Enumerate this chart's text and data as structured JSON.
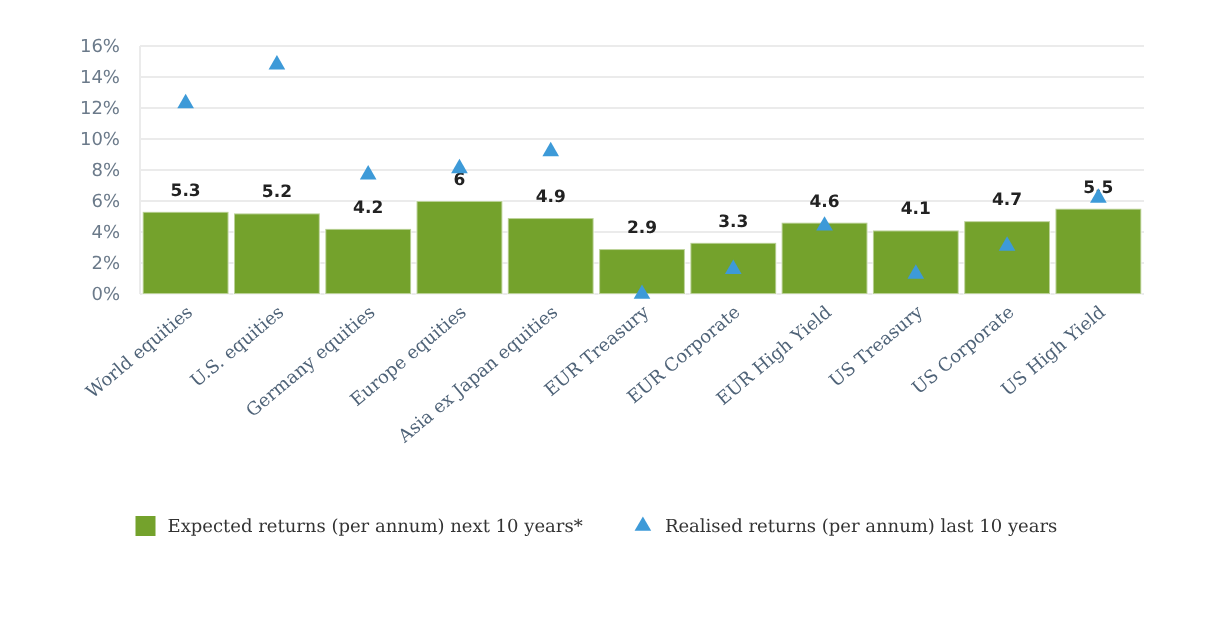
{
  "chart_data": {
    "type": "bar",
    "categories": [
      "World equities",
      "U.S. equities",
      "Germany equities",
      "Europe equities",
      "Asia ex Japan equities",
      "EUR Treasury",
      "EUR Corporate",
      "EUR High Yield",
      "US Treasury",
      "US Corporate",
      "US High Yield"
    ],
    "series": [
      {
        "name": "Expected returns (per annum) next 10 years*",
        "color": "#74a22c",
        "values": [
          5.3,
          5.2,
          4.2,
          6,
          4.9,
          2.9,
          3.3,
          4.6,
          4.1,
          4.7,
          5.5
        ],
        "value_labels": [
          "5.3",
          "5.2",
          "4.2",
          "6",
          "4.9",
          "2.9",
          "3.3",
          "4.6",
          "4.1",
          "4.7",
          "5.5"
        ]
      },
      {
        "name": "Realised returns (per annum) last 10 years",
        "type": "scatter",
        "marker": "triangle",
        "color": "#3d9ad8",
        "values": [
          12.3,
          14.8,
          7.7,
          8.1,
          9.2,
          0.0,
          1.6,
          4.4,
          1.3,
          3.1,
          6.2
        ]
      }
    ],
    "ylim": [
      0,
      16
    ],
    "yticks": [
      {
        "value": 0,
        "label": "0%"
      },
      {
        "value": 2,
        "label": "2%"
      },
      {
        "value": 4,
        "label": "4%"
      },
      {
        "value": 6,
        "label": "6%"
      },
      {
        "value": 8,
        "label": "8%"
      },
      {
        "value": 10,
        "label": "10%"
      },
      {
        "value": 12,
        "label": "12%"
      },
      {
        "value": 14,
        "label": "14%"
      },
      {
        "value": 16,
        "label": "16%"
      }
    ],
    "grid": "y",
    "legend": "bottom"
  }
}
